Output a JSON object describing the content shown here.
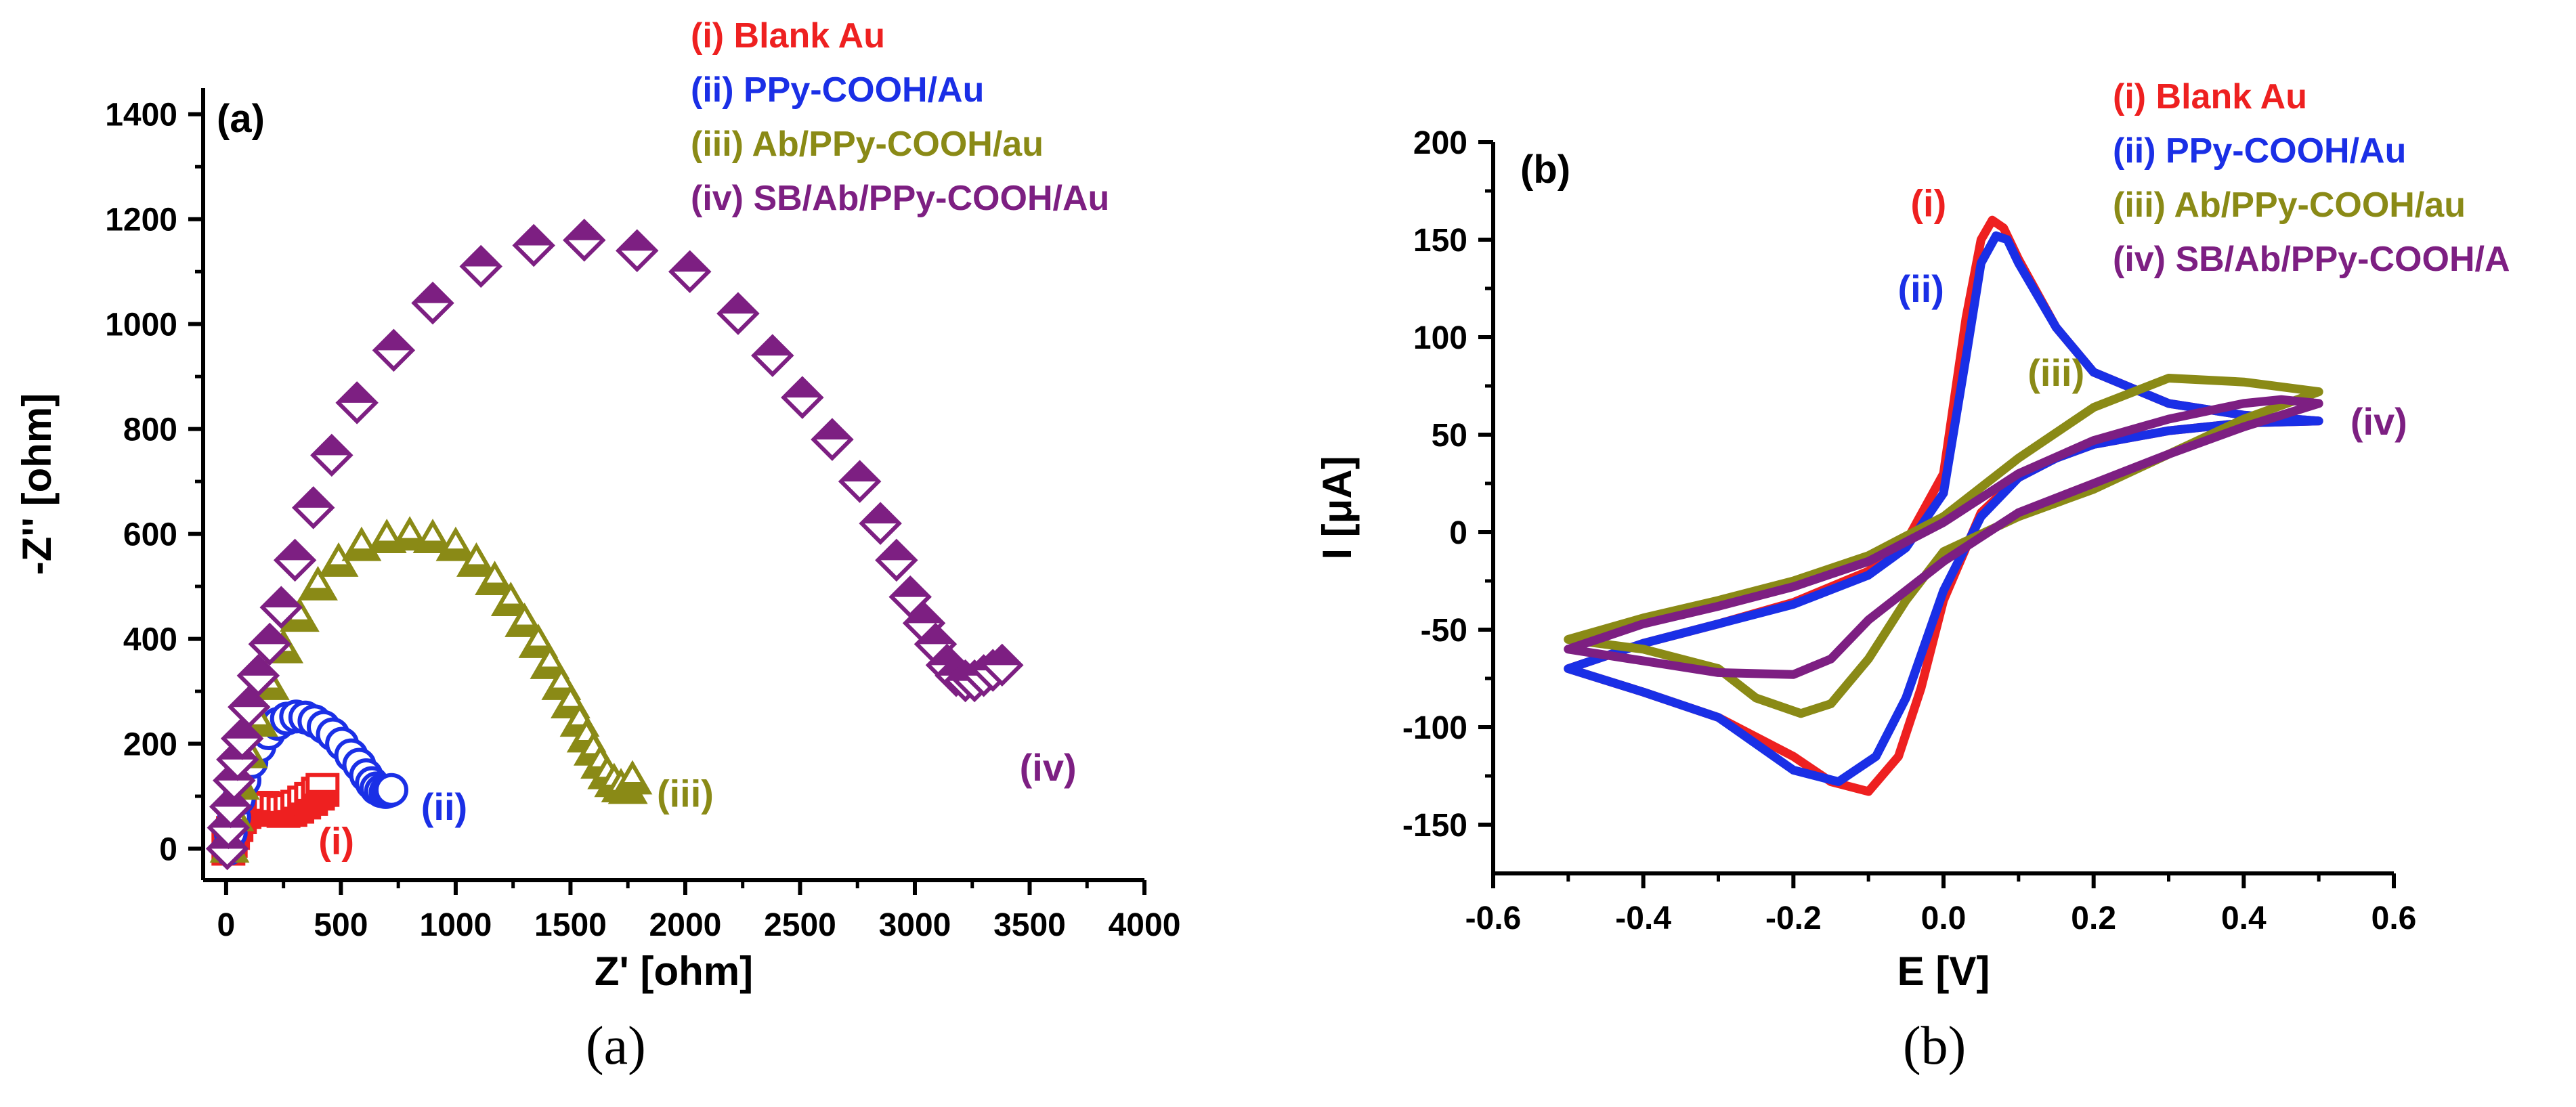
{
  "figure": {
    "caption_a": "(a)",
    "caption_b": "(b)"
  },
  "colors": {
    "red": "#ee2020",
    "blue": "#1a2fe6",
    "olive": "#8a8a16",
    "purple": "#7d1f82"
  },
  "chart_data": [
    {
      "type": "scatter",
      "title": "(a)",
      "xlabel": "Z' [ohm]",
      "ylabel": "-Z'' [ohm]",
      "xlim": [
        -100,
        4000
      ],
      "ylim": [
        -60,
        1450
      ],
      "xticks": [
        "0",
        "500",
        "1000",
        "1500",
        "2000",
        "2500",
        "3000",
        "3500",
        "4000"
      ],
      "yticks": [
        "0",
        "200",
        "400",
        "600",
        "800",
        "1000",
        "1200",
        "1400"
      ],
      "xtick_values": [
        0,
        500,
        1000,
        1500,
        2000,
        2500,
        3000,
        3500,
        4000
      ],
      "ytick_values": [
        0,
        200,
        400,
        600,
        800,
        1000,
        1200,
        1400
      ],
      "legend": [
        {
          "label": "(i)   Blank Au",
          "color": "#ee2020"
        },
        {
          "label": "(ii)  PPy-COOH/Au",
          "color": "#1a2fe6"
        },
        {
          "label": "(iii) Ab/PPy-COOH/au",
          "color": "#8a8a16"
        },
        {
          "label": "(iv) SB/Ab/PPy-COOH/Au",
          "color": "#7d1f82"
        }
      ],
      "annotations": [
        {
          "text": "(i)",
          "x": 480,
          "y": -10,
          "color": "#ee2020"
        },
        {
          "text": "(ii)",
          "x": 950,
          "y": 55,
          "color": "#1a2fe6"
        },
        {
          "text": "(iii)",
          "x": 2000,
          "y": 80,
          "color": "#8a8a16"
        },
        {
          "text": "(iv)",
          "x": 3580,
          "y": 130,
          "color": "#7d1f82"
        }
      ],
      "series": [
        {
          "name": "(i) Blank Au",
          "marker": "square",
          "color": "#ee2020",
          "x": [
            10,
            20,
            30,
            45,
            60,
            80,
            100,
            130,
            160,
            190,
            220,
            250,
            280,
            310,
            340,
            370,
            400,
            420
          ],
          "y": [
            0,
            15,
            30,
            45,
            60,
            70,
            75,
            78,
            78,
            76,
            74,
            72,
            74,
            80,
            88,
            95,
            105,
            112
          ]
        },
        {
          "name": "(ii) PPy-COOH/Au",
          "marker": "circle",
          "color": "#1a2fe6",
          "x": [
            10,
            20,
            35,
            55,
            80,
            110,
            145,
            185,
            225,
            265,
            305,
            345,
            385,
            425,
            465,
            505,
            545,
            580,
            610,
            635,
            655,
            675,
            695,
            710,
            720
          ],
          "y": [
            0,
            30,
            60,
            95,
            130,
            165,
            195,
            220,
            238,
            248,
            252,
            250,
            243,
            232,
            218,
            200,
            178,
            160,
            140,
            125,
            115,
            110,
            108,
            110,
            112
          ]
        },
        {
          "name": "(iii) Ab/PPy-COOH/au",
          "marker": "triangle",
          "color": "#8a8a16",
          "x": [
            15,
            35,
            60,
            95,
            140,
            190,
            250,
            320,
            400,
            490,
            590,
            700,
            800,
            900,
            1000,
            1090,
            1170,
            1240,
            1300,
            1360,
            1410,
            1460,
            1500,
            1540,
            1570,
            1600,
            1630,
            1660,
            1690,
            1720,
            1750,
            1770
          ],
          "y": [
            0,
            60,
            120,
            180,
            240,
            310,
            380,
            440,
            500,
            545,
            575,
            590,
            595,
            590,
            575,
            545,
            510,
            470,
            430,
            390,
            350,
            310,
            275,
            240,
            210,
            185,
            160,
            140,
            125,
            115,
            112,
            130
          ]
        },
        {
          "name": "(iv) SB/Ab/PPy-COOH/Au",
          "marker": "diamond",
          "color": "#7d1f82",
          "x": [
            5,
            10,
            20,
            35,
            50,
            70,
            100,
            140,
            190,
            240,
            300,
            380,
            460,
            570,
            730,
            900,
            1110,
            1340,
            1560,
            1790,
            2020,
            2230,
            2380,
            2510,
            2640,
            2760,
            2850,
            2920,
            2980,
            3040,
            3090,
            3140,
            3180,
            3220,
            3260,
            3300,
            3340,
            3380
          ],
          "y": [
            0,
            40,
            80,
            130,
            170,
            210,
            270,
            330,
            390,
            460,
            550,
            650,
            750,
            850,
            950,
            1040,
            1110,
            1150,
            1160,
            1140,
            1100,
            1020,
            940,
            860,
            780,
            700,
            620,
            550,
            480,
            430,
            390,
            350,
            330,
            320,
            320,
            330,
            340,
            350
          ]
        }
      ]
    },
    {
      "type": "line",
      "title": "(b)",
      "xlabel": "E [V]",
      "ylabel": "I [μA]",
      "xlim": [
        -0.6,
        0.6
      ],
      "ylim": [
        -175,
        200
      ],
      "xticks": [
        "-0.6",
        "-0.4",
        "-0.2",
        "0.0",
        "0.2",
        "0.4",
        "0.6"
      ],
      "yticks": [
        "-150",
        "-100",
        "-50",
        "0",
        "50",
        "100",
        "150",
        "200"
      ],
      "xtick_values": [
        -0.6,
        -0.4,
        -0.2,
        0.0,
        0.2,
        0.4,
        0.6
      ],
      "ytick_values": [
        -150,
        -100,
        -50,
        0,
        50,
        100,
        150,
        200
      ],
      "legend": [
        {
          "label": "(i)   Blank Au",
          "color": "#ee2020"
        },
        {
          "label": "(ii)  PPy-COOH/Au",
          "color": "#1a2fe6"
        },
        {
          "label": "(iii) Ab/PPy-COOH/au",
          "color": "#8a8a16"
        },
        {
          "label": "(iv) SB/Ab/PPy-COOH/A",
          "color": "#7d1f82"
        }
      ],
      "annotations": [
        {
          "text": "(i)",
          "x": -0.02,
          "y": 162,
          "color": "#ee2020"
        },
        {
          "text": "(ii)",
          "x": -0.03,
          "y": 118,
          "color": "#1a2fe6"
        },
        {
          "text": "(iii)",
          "x": 0.15,
          "y": 75,
          "color": "#8a8a16"
        },
        {
          "text": "(iv)",
          "x": 0.58,
          "y": 50,
          "color": "#7d1f82"
        }
      ],
      "series": [
        {
          "name": "(i) Blank Au",
          "color": "#ee2020",
          "x": [
            -0.5,
            -0.4,
            -0.3,
            -0.2,
            -0.1,
            -0.05,
            0.0,
            0.03,
            0.05,
            0.065,
            0.08,
            0.1,
            0.15,
            0.2,
            0.3,
            0.4,
            0.5,
            0.4,
            0.3,
            0.2,
            0.15,
            0.1,
            0.05,
            0.0,
            -0.03,
            -0.06,
            -0.1,
            -0.15,
            -0.2,
            -0.3,
            -0.4,
            -0.5
          ],
          "y": [
            -70,
            -57,
            -47,
            -36,
            -20,
            -5,
            30,
            110,
            150,
            160,
            156,
            140,
            105,
            82,
            66,
            60,
            57,
            56,
            52,
            45,
            38,
            28,
            10,
            -35,
            -80,
            -115,
            -133,
            -128,
            -115,
            -95,
            -82,
            -70
          ]
        },
        {
          "name": "(ii) PPy-COOH/Au",
          "color": "#1a2fe6",
          "x": [
            -0.5,
            -0.4,
            -0.3,
            -0.2,
            -0.1,
            -0.05,
            0.0,
            0.03,
            0.05,
            0.07,
            0.085,
            0.1,
            0.15,
            0.2,
            0.3,
            0.4,
            0.5,
            0.4,
            0.3,
            0.2,
            0.15,
            0.1,
            0.05,
            0.0,
            -0.05,
            -0.09,
            -0.14,
            -0.2,
            -0.3,
            -0.4,
            -0.5
          ],
          "y": [
            -70,
            -57,
            -47,
            -37,
            -22,
            -8,
            20,
            90,
            138,
            152,
            150,
            138,
            105,
            82,
            66,
            60,
            57,
            56,
            52,
            45,
            38,
            28,
            8,
            -30,
            -85,
            -115,
            -128,
            -122,
            -95,
            -82,
            -70
          ]
        },
        {
          "name": "(iii) Ab/PPy-COOH/au",
          "color": "#8a8a16",
          "x": [
            -0.5,
            -0.4,
            -0.3,
            -0.2,
            -0.1,
            0.0,
            0.1,
            0.2,
            0.3,
            0.4,
            0.5,
            0.4,
            0.3,
            0.2,
            0.1,
            0.0,
            -0.05,
            -0.1,
            -0.15,
            -0.19,
            -0.25,
            -0.3,
            -0.4,
            -0.5
          ],
          "y": [
            -55,
            -44,
            -35,
            -25,
            -12,
            8,
            38,
            64,
            79,
            77,
            72,
            58,
            40,
            22,
            8,
            -10,
            -35,
            -65,
            -88,
            -93,
            -85,
            -70,
            -60,
            -55
          ]
        },
        {
          "name": "(iv) SB/Ab/PPy-COOH/Au",
          "color": "#7d1f82",
          "x": [
            -0.5,
            -0.4,
            -0.3,
            -0.2,
            -0.1,
            0.0,
            0.1,
            0.2,
            0.3,
            0.4,
            0.45,
            0.5,
            0.4,
            0.3,
            0.2,
            0.1,
            0.0,
            -0.1,
            -0.15,
            -0.2,
            -0.3,
            -0.4,
            -0.5
          ],
          "y": [
            -60,
            -47,
            -38,
            -28,
            -15,
            5,
            30,
            47,
            58,
            66,
            68,
            66,
            54,
            40,
            25,
            10,
            -15,
            -45,
            -65,
            -73,
            -72,
            -66,
            -60
          ]
        }
      ]
    }
  ]
}
